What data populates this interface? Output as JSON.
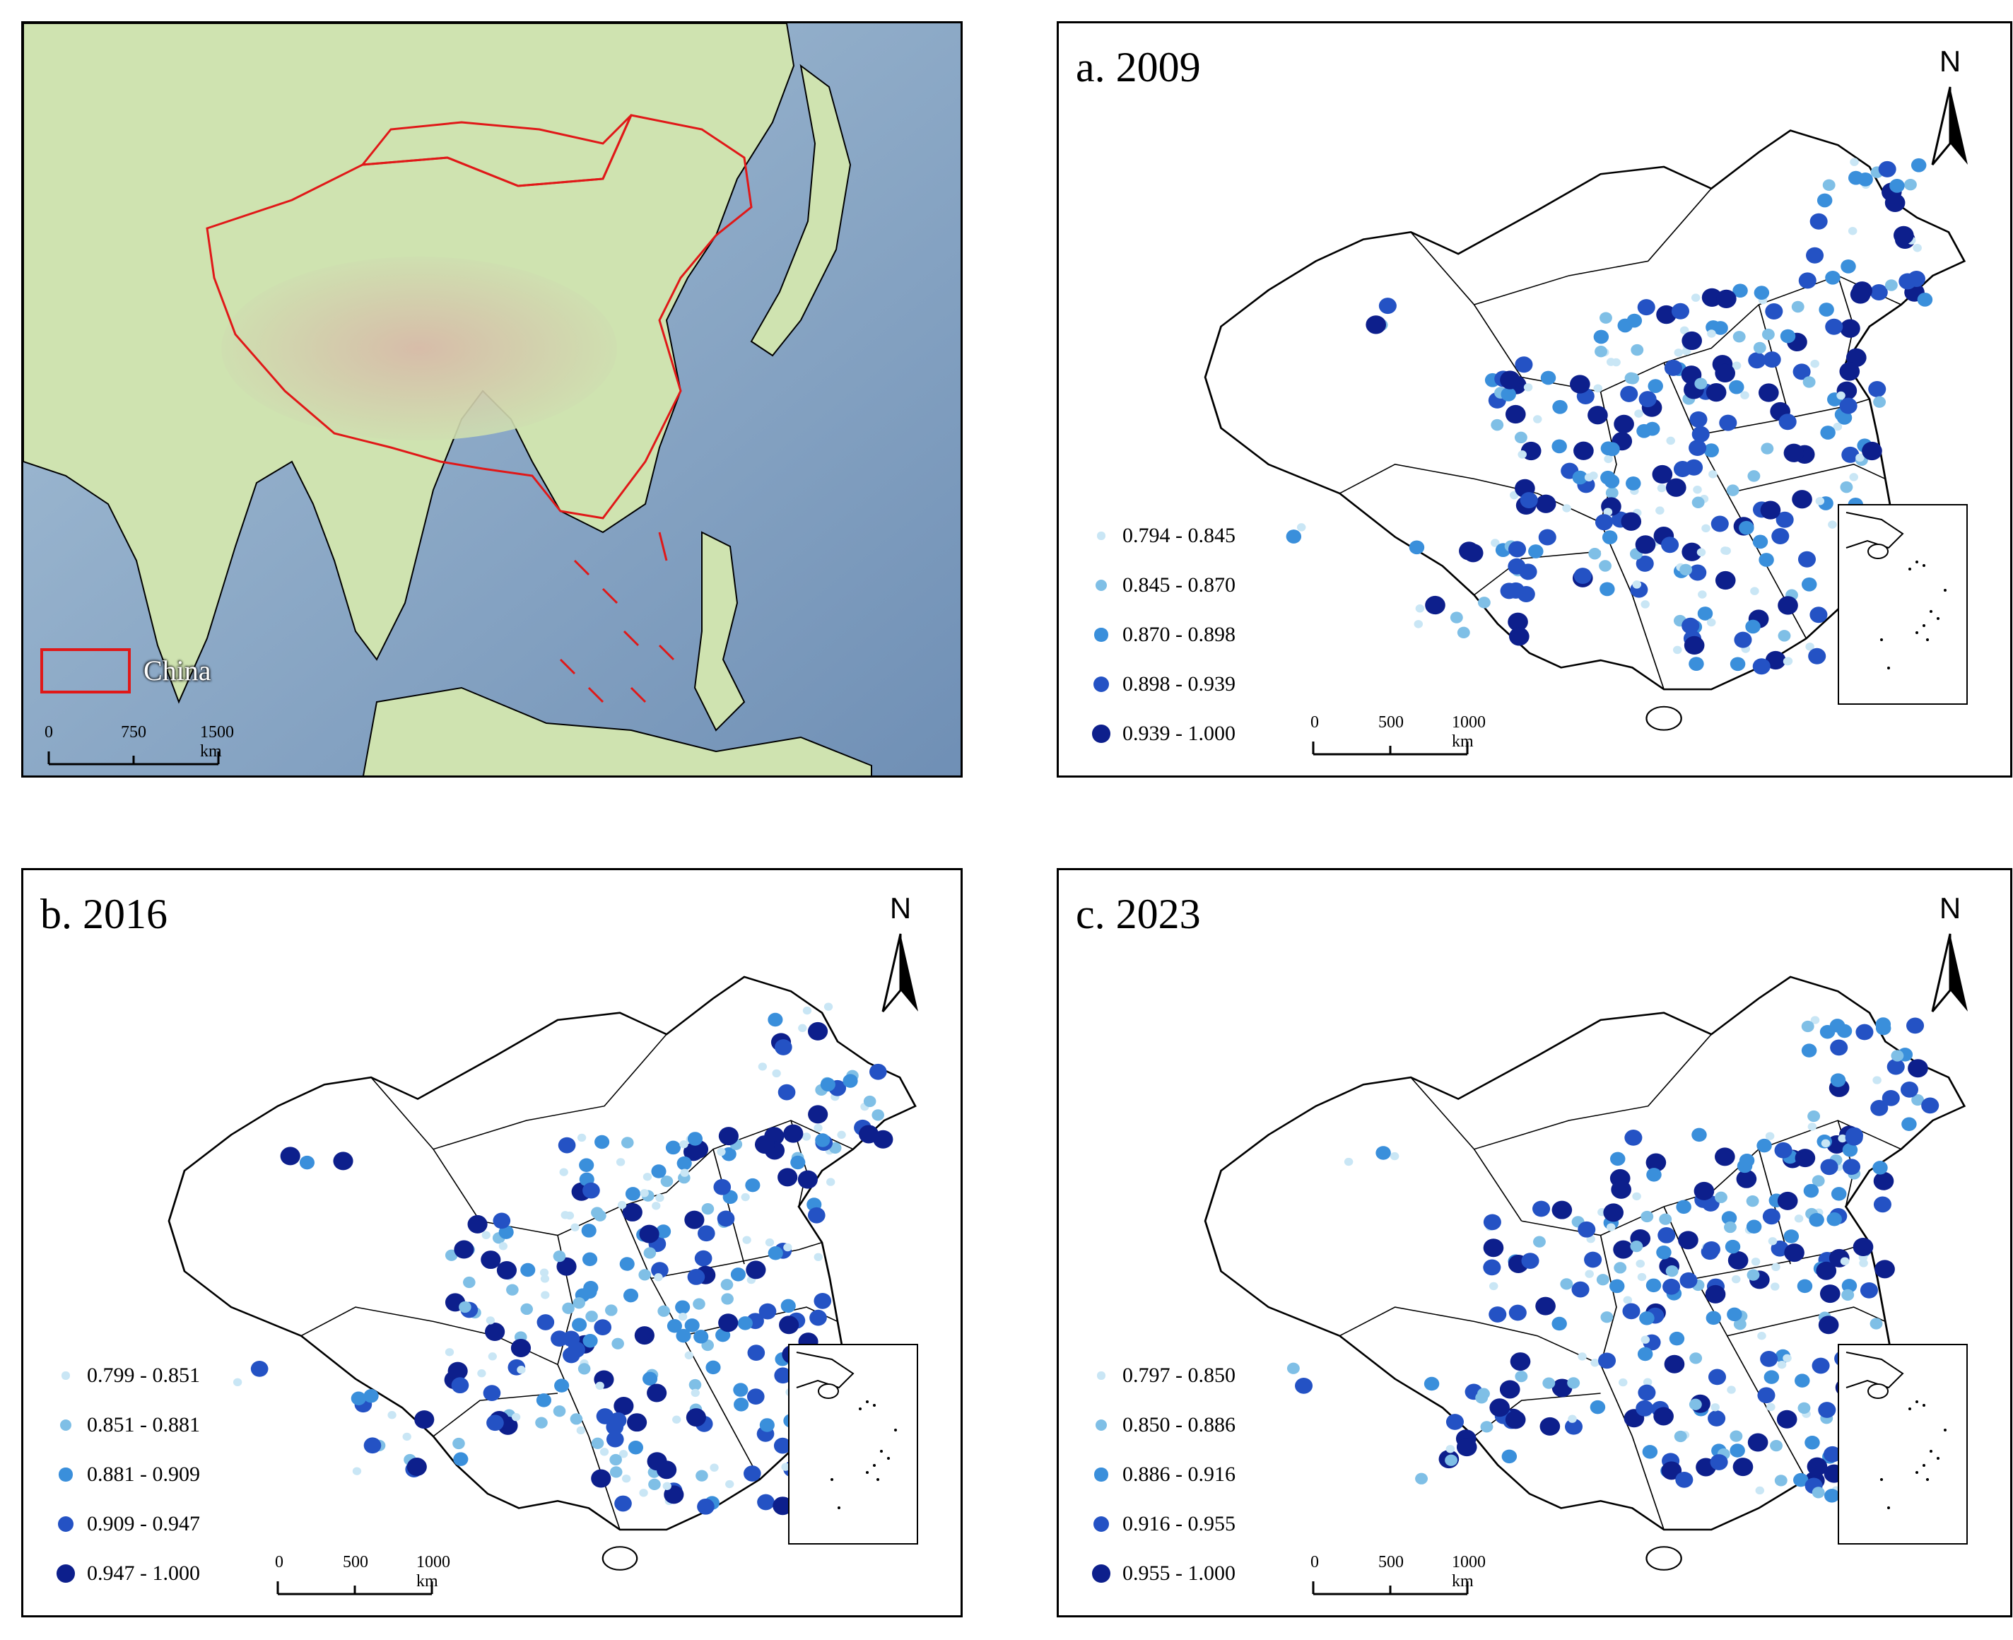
{
  "overview": {
    "label": "China",
    "scale": {
      "labels": [
        "0",
        "750",
        "1500 km"
      ]
    }
  },
  "panels": [
    {
      "id": "a",
      "title": "a. 2009",
      "north": "N",
      "legend": [
        "0.794 - 0.845",
        "0.845 - 0.870",
        "0.870 - 0.898",
        "0.898 - 0.939",
        "0.939 - 1.000"
      ],
      "scale": {
        "labels": [
          "0",
          "500",
          "1000 km"
        ]
      }
    },
    {
      "id": "b",
      "title": "b. 2016",
      "north": "N",
      "legend": [
        "0.799 - 0.851",
        "0.851 - 0.881",
        "0.881 - 0.909",
        "0.909 - 0.947",
        "0.947 - 1.000"
      ],
      "scale": {
        "labels": [
          "0",
          "500",
          "1000 km"
        ]
      }
    },
    {
      "id": "c",
      "title": "c. 2023",
      "north": "N",
      "legend": [
        "0.797 - 0.850",
        "0.850 - 0.886",
        "0.886 - 0.916",
        "0.916 - 0.955",
        "0.955 - 1.000"
      ],
      "scale": {
        "labels": [
          "0",
          "500",
          "1000 km"
        ]
      }
    }
  ],
  "class_colors": [
    "#c9e6f5",
    "#7fbfe6",
    "#3a8fdb",
    "#2452c4",
    "#0d1f8c"
  ]
}
